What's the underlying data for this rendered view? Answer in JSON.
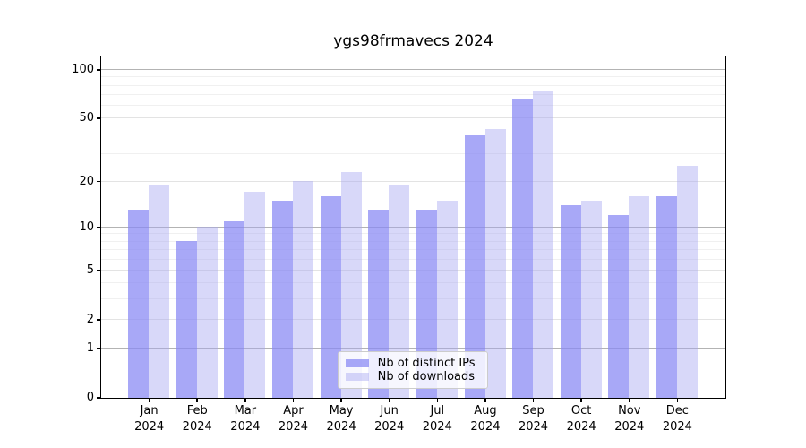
{
  "chart_data": {
    "type": "bar",
    "title": "ygs98frmavecs 2024",
    "categories": [
      "Jan",
      "Feb",
      "Mar",
      "Apr",
      "May",
      "Jun",
      "Jul",
      "Aug",
      "Sep",
      "Oct",
      "Nov",
      "Dec"
    ],
    "x_tick_year": "2024",
    "series": [
      {
        "name": "Nb of distinct IPs",
        "color": "#a9a9f8",
        "fill": "rgba(138,138,244,0.74)",
        "values": [
          13,
          8,
          11,
          15,
          16,
          13,
          13,
          39,
          66,
          14,
          12,
          16
        ]
      },
      {
        "name": "Nb of downloads",
        "color": "#d7d7fa",
        "fill": "rgba(164,164,242,0.43)",
        "values": [
          19,
          10,
          17,
          20,
          23,
          19,
          15,
          43,
          73,
          15,
          16,
          25
        ]
      }
    ],
    "yscale": "log1p",
    "ylim": [
      0,
      121
    ],
    "yticks": [
      0,
      1,
      2,
      5,
      10,
      20,
      50,
      100
    ],
    "yticks_major_grid": [
      1,
      10,
      100
    ],
    "yticks_minor_grid": [
      3,
      4,
      6,
      7,
      8,
      9,
      30,
      40,
      60,
      70,
      80,
      90
    ],
    "grid": "on",
    "legend_position": "lower center",
    "xlabel": "",
    "ylabel": ""
  }
}
